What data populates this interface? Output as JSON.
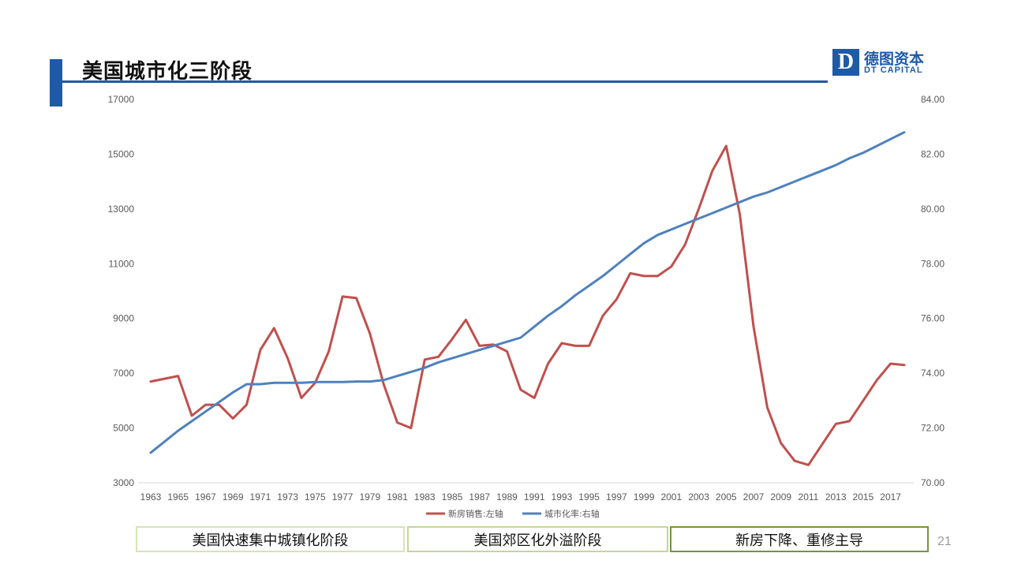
{
  "slide": {
    "title": "美国城市化三阶段",
    "page_number": "21",
    "accent_color": "#1f5aa6",
    "logo": {
      "cn": "德图资本",
      "en": "DT CAPITAL",
      "mark": "D"
    }
  },
  "stages": [
    {
      "label": "美国快速集中城镇化阶段",
      "border_color": "#d6e3bc"
    },
    {
      "label": "美国郊区化外溢阶段",
      "border_color": "#c3d69b"
    },
    {
      "label": "新房下降、重修主导",
      "border_color": "#77933c"
    }
  ],
  "chart_data": {
    "type": "line",
    "title": "",
    "xlabel": "",
    "ylabel": "",
    "x": [
      1963,
      1964,
      1965,
      1966,
      1967,
      1968,
      1969,
      1970,
      1971,
      1972,
      1973,
      1974,
      1975,
      1976,
      1977,
      1978,
      1979,
      1980,
      1981,
      1982,
      1983,
      1984,
      1985,
      1986,
      1987,
      1988,
      1989,
      1990,
      1991,
      1992,
      1993,
      1994,
      1995,
      1996,
      1997,
      1998,
      1999,
      2000,
      2001,
      2002,
      2003,
      2004,
      2005,
      2006,
      2007,
      2008,
      2009,
      2010,
      2011,
      2012,
      2013,
      2014,
      2015,
      2016,
      2017,
      2018
    ],
    "x_tick_labels": [
      "1963",
      "1965",
      "1967",
      "1969",
      "1971",
      "1973",
      "1975",
      "1977",
      "1979",
      "1981",
      "1983",
      "1985",
      "1987",
      "1989",
      "1991",
      "1993",
      "1995",
      "1997",
      "1999",
      "2001",
      "2003",
      "2005",
      "2007",
      "2009",
      "2011",
      "2013",
      "2015",
      "2017"
    ],
    "y_left": {
      "range": [
        3000,
        17000
      ],
      "ticks": [
        "3000",
        "5000",
        "7000",
        "9000",
        "11000",
        "13000",
        "15000",
        "17000"
      ]
    },
    "y_right": {
      "range": [
        70,
        84
      ],
      "ticks": [
        "70.00",
        "72.00",
        "74.00",
        "76.00",
        "78.00",
        "80.00",
        "82.00",
        "84.00"
      ]
    },
    "grid": false,
    "legend_position": "bottom",
    "series": [
      {
        "name": "新房销售:左轴",
        "axis": "left",
        "color": "#c0504d",
        "values": [
          6700,
          6800,
          6900,
          5450,
          5850,
          5850,
          5350,
          5850,
          7850,
          8650,
          7550,
          6100,
          6650,
          7800,
          9800,
          9750,
          8450,
          6600,
          5200,
          5000,
          7500,
          7600,
          8250,
          8950,
          8000,
          8050,
          7800,
          6400,
          6100,
          7350,
          8100,
          8000,
          8000,
          9100,
          9700,
          10650,
          10550,
          10550,
          10900,
          11700,
          13000,
          14400,
          15300,
          12800,
          8700,
          5750,
          4450,
          3800,
          3650,
          4400,
          5150,
          5250,
          6000,
          6750,
          7350,
          7300
        ]
      },
      {
        "name": "城市化率:右轴",
        "axis": "right",
        "color": "#4f81bd",
        "values": [
          71.1,
          71.5,
          71.9,
          72.25,
          72.6,
          72.95,
          73.3,
          73.6,
          73.6,
          73.65,
          73.65,
          73.65,
          73.68,
          73.68,
          73.68,
          73.7,
          73.7,
          73.75,
          73.9,
          74.05,
          74.2,
          74.4,
          74.55,
          74.7,
          74.85,
          75.0,
          75.15,
          75.3,
          75.7,
          76.1,
          76.45,
          76.85,
          77.2,
          77.55,
          77.95,
          78.35,
          78.75,
          79.05,
          79.25,
          79.45,
          79.65,
          79.85,
          80.05,
          80.25,
          80.45,
          80.6,
          80.8,
          81.0,
          81.2,
          81.4,
          81.6,
          81.85,
          82.05,
          82.3,
          82.55,
          82.8
        ]
      }
    ]
  }
}
